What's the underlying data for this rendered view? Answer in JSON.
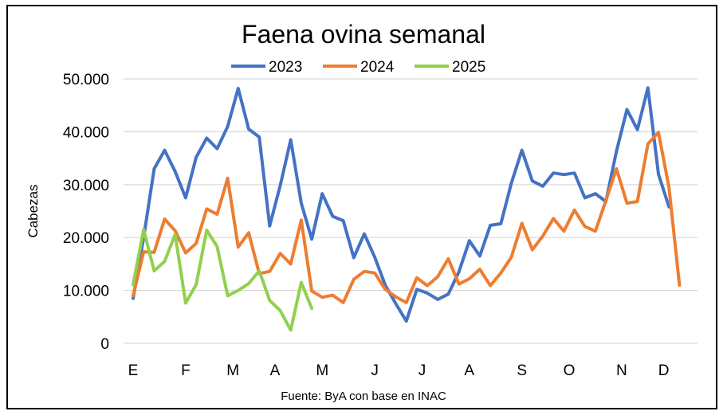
{
  "chart_data": {
    "type": "line",
    "title": "Faena ovina semanal",
    "ylabel": "Cabezas",
    "xlabel": "",
    "source": "Fuente: ByA con base en INAC",
    "ylim": [
      0,
      50000
    ],
    "y_ticks": [
      "0",
      "10.000",
      "20.000",
      "30.000",
      "40.000",
      "50.000"
    ],
    "x_tick_labels": [
      "E",
      "F",
      "M",
      "A",
      "M",
      "J",
      "J",
      "A",
      "S",
      "O",
      "N",
      "D"
    ],
    "x_tick_weeks": [
      1,
      6,
      10.5,
      14.5,
      19,
      24,
      28.5,
      33,
      38,
      42.5,
      47.5,
      51.5
    ],
    "legend_position": "top",
    "grid": true,
    "series": [
      {
        "name": "2023",
        "color": "#4472c4",
        "values": [
          8500,
          20000,
          33000,
          36500,
          32500,
          27500,
          35200,
          38800,
          36800,
          41000,
          48200,
          40500,
          39000,
          22200,
          29800,
          38500,
          26500,
          19700,
          28300,
          24000,
          23200,
          16200,
          20700,
          16300,
          11000,
          7500,
          4200,
          10200,
          9500,
          8300,
          9300,
          13500,
          19400,
          16500,
          22300,
          22600,
          30300,
          36500,
          30700,
          29700,
          32200,
          31900,
          32200,
          27500,
          28300,
          26800,
          36300,
          44200,
          40400,
          48300,
          32000,
          25800
        ]
      },
      {
        "name": "2024",
        "color": "#ed7d31",
        "values": [
          9000,
          17300,
          17200,
          23500,
          21300,
          17100,
          18900,
          25400,
          24400,
          31200,
          18200,
          20900,
          13200,
          13600,
          17000,
          15000,
          23300,
          9900,
          8700,
          9100,
          7700,
          12100,
          13600,
          13300,
          10200,
          8800,
          7700,
          12400,
          10900,
          12600,
          16000,
          11200,
          12200,
          14000,
          10900,
          13300,
          16300,
          22700,
          17700,
          20300,
          23600,
          21200,
          25200,
          22100,
          21200,
          27000,
          33000,
          26500,
          26800,
          37700,
          39900,
          29500,
          11000
        ]
      },
      {
        "name": "2025",
        "color": "#92d050",
        "values": [
          11100,
          21500,
          13700,
          15500,
          20600,
          7600,
          11100,
          21400,
          18300,
          9000,
          10000,
          11300,
          13700,
          8100,
          6200,
          2500,
          11500,
          6600
        ]
      }
    ]
  }
}
